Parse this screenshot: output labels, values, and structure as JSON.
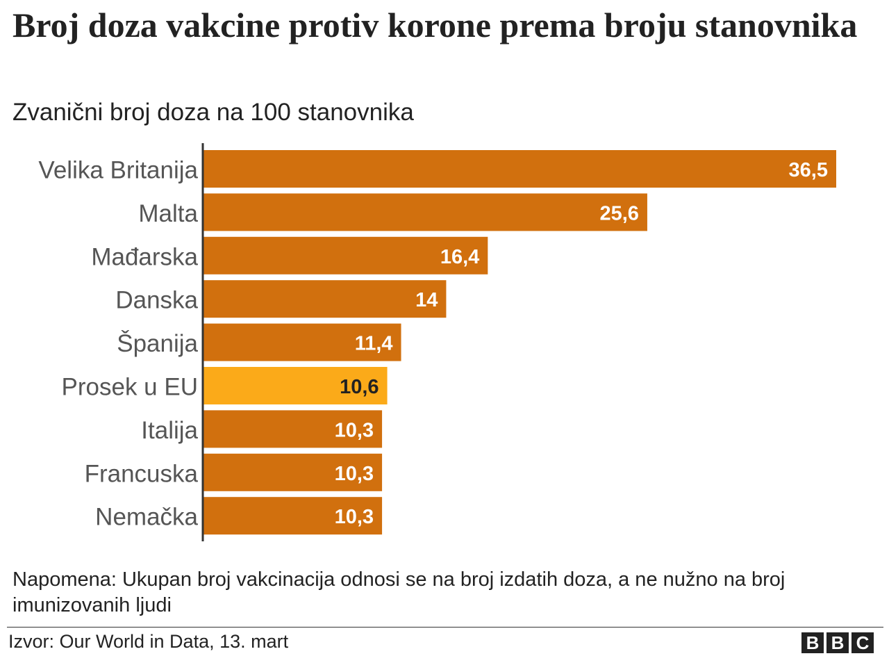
{
  "header": {
    "title": "Broj doza vakcine protiv korone prema broju stanovnika",
    "subtitle": "Zvanični broj doza na 100 stanovnika"
  },
  "chart_data": {
    "type": "bar",
    "orientation": "horizontal",
    "categories": [
      "Velika Britanija",
      "Malta",
      "Mađarska",
      "Danska",
      "Španija",
      "Prosek u EU",
      "Italija",
      "Francuska",
      "Nemačka"
    ],
    "values": [
      36.5,
      25.6,
      16.4,
      14,
      11.4,
      10.6,
      10.3,
      10.3,
      10.3
    ],
    "value_labels": [
      "36,5",
      "25,6",
      "16,4",
      "14",
      "11,4",
      "10,6",
      "10,3",
      "10,3",
      "10,3"
    ],
    "colors": [
      "#d1700e",
      "#d1700e",
      "#d1700e",
      "#d1700e",
      "#d1700e",
      "#fbaa19",
      "#d1700e",
      "#d1700e",
      "#d1700e"
    ],
    "label_colors": [
      "#ffffff",
      "#ffffff",
      "#ffffff",
      "#ffffff",
      "#ffffff",
      "#222222",
      "#ffffff",
      "#ffffff",
      "#ffffff"
    ]
  },
  "footer": {
    "note": "Napomena: Ukupan broj vakcinacija odnosi se na broj izdatih doza, a ne nužno na broj imunizovanih ljudi",
    "source": "Izvor: Our World in Data, 13. mart",
    "logo": [
      "B",
      "B",
      "C"
    ]
  }
}
